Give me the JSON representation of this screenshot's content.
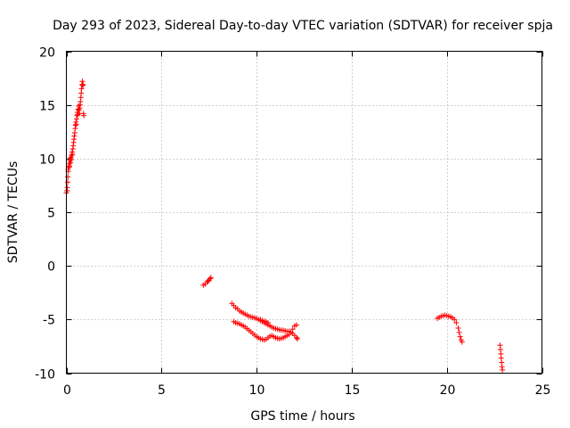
{
  "chart_data": {
    "type": "scatter",
    "title": "Day 293 of 2023, Sidereal Day-to-day VTEC variation (SDTVAR) for receiver spja",
    "xlabel": "GPS time / hours",
    "ylabel": "SDTVAR / TECUs",
    "xlim": [
      0,
      25
    ],
    "ylim": [
      -10,
      20
    ],
    "xticks": [
      0,
      5,
      10,
      15,
      20,
      25
    ],
    "yticks": [
      -10,
      -5,
      0,
      5,
      10,
      15,
      20
    ],
    "xtick_labels": [
      "0",
      "5",
      "10",
      "15",
      "20",
      "25"
    ],
    "ytick_labels": [
      "-10",
      "-5",
      "0",
      "5",
      "10",
      "15",
      "20"
    ],
    "grid": true,
    "marker": "+",
    "color": "#ff0000",
    "series": [
      {
        "name": "SDTVAR",
        "points": [
          [
            0.0,
            6.8
          ],
          [
            0.03,
            7.0
          ],
          [
            0.05,
            7.3
          ],
          [
            0.07,
            7.8
          ],
          [
            0.08,
            8.3
          ],
          [
            0.1,
            8.8
          ],
          [
            0.12,
            9.2
          ],
          [
            0.14,
            9.5
          ],
          [
            0.16,
            9.3
          ],
          [
            0.18,
            9.8
          ],
          [
            0.2,
            10.0
          ],
          [
            0.22,
            9.6
          ],
          [
            0.24,
            10.1
          ],
          [
            0.26,
            9.9
          ],
          [
            0.28,
            10.3
          ],
          [
            0.3,
            10.6
          ],
          [
            0.32,
            10.4
          ],
          [
            0.34,
            10.9
          ],
          [
            0.36,
            11.2
          ],
          [
            0.38,
            11.5
          ],
          [
            0.4,
            11.8
          ],
          [
            0.42,
            12.1
          ],
          [
            0.44,
            12.4
          ],
          [
            0.46,
            12.8
          ],
          [
            0.48,
            13.1
          ],
          [
            0.5,
            13.4
          ],
          [
            0.52,
            13.2
          ],
          [
            0.54,
            13.7
          ],
          [
            0.56,
            14.0
          ],
          [
            0.58,
            14.3
          ],
          [
            0.6,
            14.1
          ],
          [
            0.62,
            14.6
          ],
          [
            0.64,
            14.9
          ],
          [
            0.66,
            14.5
          ],
          [
            0.68,
            14.2
          ],
          [
            0.7,
            14.7
          ],
          [
            0.72,
            15.0
          ],
          [
            0.74,
            15.3
          ],
          [
            0.76,
            15.7
          ],
          [
            0.78,
            16.1
          ],
          [
            0.8,
            16.5
          ],
          [
            0.82,
            16.9
          ],
          [
            0.84,
            17.2
          ],
          [
            0.86,
            16.8
          ],
          [
            0.88,
            16.9
          ],
          [
            0.9,
            14.2
          ],
          [
            0.92,
            14.0
          ],
          [
            0.05,
            7.0
          ],
          [
            0.1,
            9.0
          ],
          [
            0.15,
            9.2
          ],
          [
            7.2,
            -1.8
          ],
          [
            7.3,
            -1.7
          ],
          [
            7.4,
            -1.5
          ],
          [
            7.45,
            -1.4
          ],
          [
            7.5,
            -1.35
          ],
          [
            7.55,
            -1.2
          ],
          [
            7.6,
            -1.1
          ],
          [
            8.7,
            -3.5
          ],
          [
            8.8,
            -3.7
          ],
          [
            8.9,
            -3.9
          ],
          [
            9.0,
            -4.0
          ],
          [
            9.1,
            -4.2
          ],
          [
            9.2,
            -4.3
          ],
          [
            9.3,
            -4.4
          ],
          [
            9.4,
            -4.5
          ],
          [
            9.5,
            -4.6
          ],
          [
            9.6,
            -4.7
          ],
          [
            9.7,
            -4.75
          ],
          [
            9.8,
            -4.8
          ],
          [
            9.9,
            -4.85
          ],
          [
            10.0,
            -4.9
          ],
          [
            10.1,
            -5.0
          ],
          [
            10.2,
            -5.1
          ],
          [
            10.3,
            -5.2
          ],
          [
            10.4,
            -5.3
          ],
          [
            10.5,
            -5.4
          ],
          [
            10.6,
            -5.5
          ],
          [
            10.7,
            -5.6
          ],
          [
            10.8,
            -5.7
          ],
          [
            10.9,
            -5.8
          ],
          [
            11.0,
            -5.85
          ],
          [
            11.1,
            -5.9
          ],
          [
            11.2,
            -5.95
          ],
          [
            11.3,
            -6.0
          ],
          [
            11.4,
            -6.0
          ],
          [
            11.5,
            -6.05
          ],
          [
            11.6,
            -6.1
          ],
          [
            11.7,
            -6.1
          ],
          [
            11.8,
            -6.2
          ],
          [
            11.9,
            -6.3
          ],
          [
            12.0,
            -6.5
          ],
          [
            12.1,
            -6.7
          ],
          [
            12.15,
            -6.8
          ],
          [
            8.8,
            -5.2
          ],
          [
            8.9,
            -5.3
          ],
          [
            9.0,
            -5.35
          ],
          [
            9.1,
            -5.4
          ],
          [
            9.2,
            -5.5
          ],
          [
            9.3,
            -5.6
          ],
          [
            9.4,
            -5.7
          ],
          [
            9.5,
            -5.85
          ],
          [
            9.6,
            -6.0
          ],
          [
            9.7,
            -6.15
          ],
          [
            9.8,
            -6.3
          ],
          [
            9.9,
            -6.45
          ],
          [
            10.0,
            -6.6
          ],
          [
            10.1,
            -6.7
          ],
          [
            10.2,
            -6.8
          ],
          [
            10.3,
            -6.85
          ],
          [
            10.4,
            -6.9
          ],
          [
            10.5,
            -6.85
          ],
          [
            10.6,
            -6.7
          ],
          [
            10.7,
            -6.55
          ],
          [
            10.8,
            -6.5
          ],
          [
            10.9,
            -6.6
          ],
          [
            11.0,
            -6.7
          ],
          [
            11.1,
            -6.75
          ],
          [
            11.2,
            -6.8
          ],
          [
            11.3,
            -6.75
          ],
          [
            11.4,
            -6.7
          ],
          [
            11.5,
            -6.6
          ],
          [
            11.6,
            -6.5
          ],
          [
            11.7,
            -6.4
          ],
          [
            11.8,
            -6.2
          ],
          [
            11.9,
            -5.9
          ],
          [
            12.0,
            -5.6
          ],
          [
            12.1,
            -5.5
          ],
          [
            10.2,
            -5.0
          ],
          [
            10.3,
            -5.1
          ],
          [
            10.4,
            -5.15
          ],
          [
            10.5,
            -5.2
          ],
          [
            10.6,
            -5.3
          ],
          [
            19.5,
            -4.9
          ],
          [
            19.6,
            -4.8
          ],
          [
            19.7,
            -4.7
          ],
          [
            19.8,
            -4.65
          ],
          [
            19.9,
            -4.6
          ],
          [
            20.0,
            -4.65
          ],
          [
            20.1,
            -4.7
          ],
          [
            20.2,
            -4.75
          ],
          [
            20.3,
            -4.85
          ],
          [
            20.4,
            -5.0
          ],
          [
            20.5,
            -5.3
          ],
          [
            20.6,
            -5.8
          ],
          [
            20.65,
            -6.2
          ],
          [
            20.7,
            -6.6
          ],
          [
            20.75,
            -6.9
          ],
          [
            20.8,
            -7.1
          ],
          [
            22.8,
            -7.4
          ],
          [
            22.82,
            -7.8
          ],
          [
            22.84,
            -8.2
          ],
          [
            22.86,
            -8.6
          ],
          [
            22.88,
            -9.0
          ],
          [
            22.9,
            -9.4
          ],
          [
            22.92,
            -9.7
          ]
        ]
      }
    ]
  }
}
